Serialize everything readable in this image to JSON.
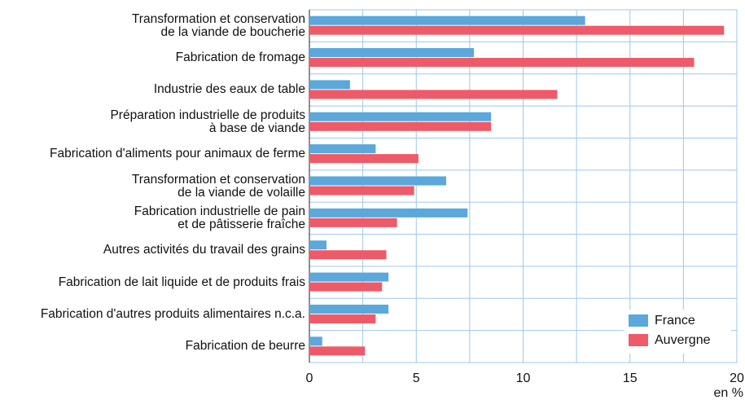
{
  "chart_data": {
    "type": "hbar",
    "x_label": "en %",
    "categories": [
      "Transformation et conservation\nde la viande de boucherie",
      "Fabrication de fromage",
      "Industrie des eaux de table",
      "Préparation industrielle de produits\nà base de viande",
      "Fabrication d'aliments pour animaux de ferme",
      "Transformation et conservation\nde la viande de volaille",
      "Fabrication industrielle de pain\net de pâtisserie fraîche",
      "Autres activités du travail des grains",
      "Fabrication de lait liquide et de produits frais",
      "Fabrication d'autres produits alimentaires n.c.a.",
      "Fabrication de beurre"
    ],
    "series": [
      {
        "name": "France",
        "color": "#5aa8dc",
        "values": [
          12.9,
          7.7,
          1.9,
          8.5,
          3.1,
          6.4,
          7.4,
          0.8,
          3.7,
          3.7,
          0.6
        ]
      },
      {
        "name": "Auvergne",
        "color": "#ef5a68",
        "values": [
          19.4,
          18.0,
          11.6,
          8.5,
          5.1,
          4.9,
          4.1,
          3.6,
          3.4,
          3.1,
          2.6
        ]
      }
    ],
    "xlim": [
      0,
      20
    ],
    "xticks": [
      0,
      5,
      10,
      15,
      20
    ],
    "xticks_minor": [
      2.5,
      7.5,
      12.5,
      17.5
    ],
    "grid": true,
    "legend": "lower right"
  }
}
